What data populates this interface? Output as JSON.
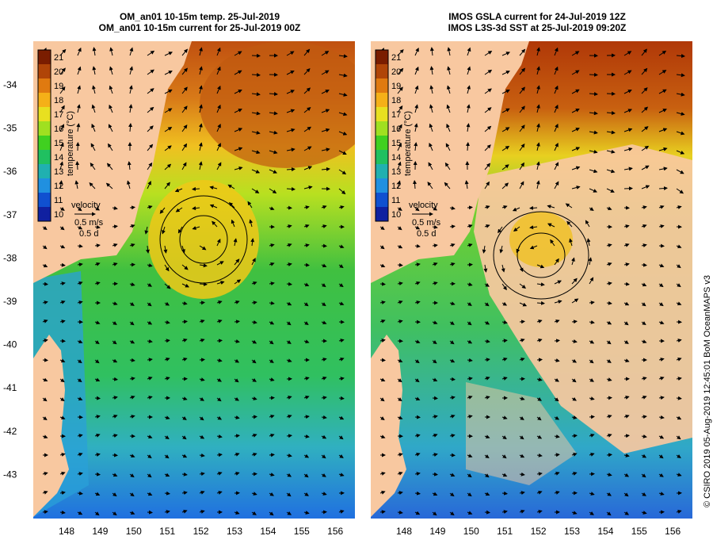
{
  "titles": {
    "left_line1": "OM_an01 10-15m temp. 25-Jul-2019",
    "left_line2": "OM_an01 10-15m current for 25-Jul-2019 00Z",
    "right_line1": "IMOS GSLA current for 24-Jul-2019 12Z",
    "right_line2": "IMOS L3S-3d SST at 25-Jul-2019 09:20Z"
  },
  "axes": {
    "lat_labels": [
      "-34",
      "-35",
      "-36",
      "-37",
      "-38",
      "-39",
      "-40",
      "-41",
      "-42",
      "-43"
    ],
    "lon_labels": [
      "148",
      "149",
      "150",
      "151",
      "152",
      "153",
      "154",
      "155",
      "156"
    ]
  },
  "colorbar": {
    "label": "temperature (°C)",
    "ticks": [
      "21",
      "20",
      "19",
      "18",
      "17",
      "16",
      "15",
      "14",
      "13",
      "12",
      "11",
      "10"
    ],
    "colors": [
      "#7a1d00",
      "#b04508",
      "#e07a10",
      "#f5b018",
      "#e8e020",
      "#a0e020",
      "#40d020",
      "#20c060",
      "#20b0b0",
      "#2090e0",
      "#1050d0",
      "#1020a0"
    ]
  },
  "legend": {
    "title": "velocity",
    "speed": "0.5 m/s",
    "time": "0.5 d"
  },
  "credit": "© CSIRO 2019   05-Aug-2019 12:45:01 BoM OceanMAPS v3",
  "colors": {
    "land": "#f8c8a0",
    "arrow": "#000000"
  }
}
